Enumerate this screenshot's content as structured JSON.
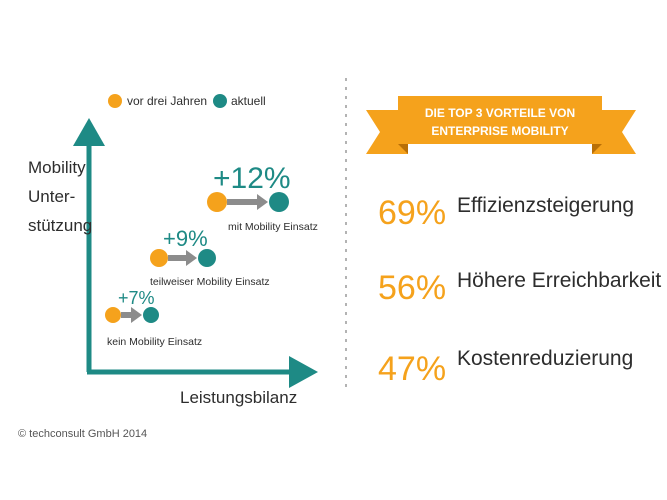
{
  "colors": {
    "orange": "#f5a21c",
    "teal": "#1e8a85",
    "gray": "#8c8c8c",
    "text": "#2d2d2d",
    "divider": "#9a9a9a"
  },
  "legend": {
    "before": "vor drei Jahren",
    "now": "aktuell"
  },
  "chart_data": {
    "type": "scatter",
    "ylabel": "Mobility Unter-\nstützung",
    "xlabel": "Leistungsbilanz",
    "series": [
      {
        "name": "vor drei Jahren"
      },
      {
        "name": "aktuell"
      }
    ],
    "groups": [
      {
        "label": "kein Mobility Einsatz",
        "change": "+7%",
        "level": 1
      },
      {
        "label": "teilweiser Mobility Einsatz",
        "change": "+9%",
        "level": 2
      },
      {
        "label": "mit Mobility Einsatz",
        "change": "+12%",
        "level": 3
      }
    ]
  },
  "ylabel_lines": [
    "Mobility",
    "Unter-",
    "stützung"
  ],
  "banner": {
    "line1": "DIE TOP 3 VORTEILE VON",
    "line2": "ENTERPRISE MOBILITY"
  },
  "benefits": [
    {
      "percent": "69%",
      "label": "Effizienzsteigerung"
    },
    {
      "percent": "56%",
      "label": "Höhere Erreichbarkeit"
    },
    {
      "percent": "47%",
      "label": "Kostenreduzierung"
    }
  ],
  "footer": {
    "copyright": "© techconsult GmbH 2014"
  }
}
